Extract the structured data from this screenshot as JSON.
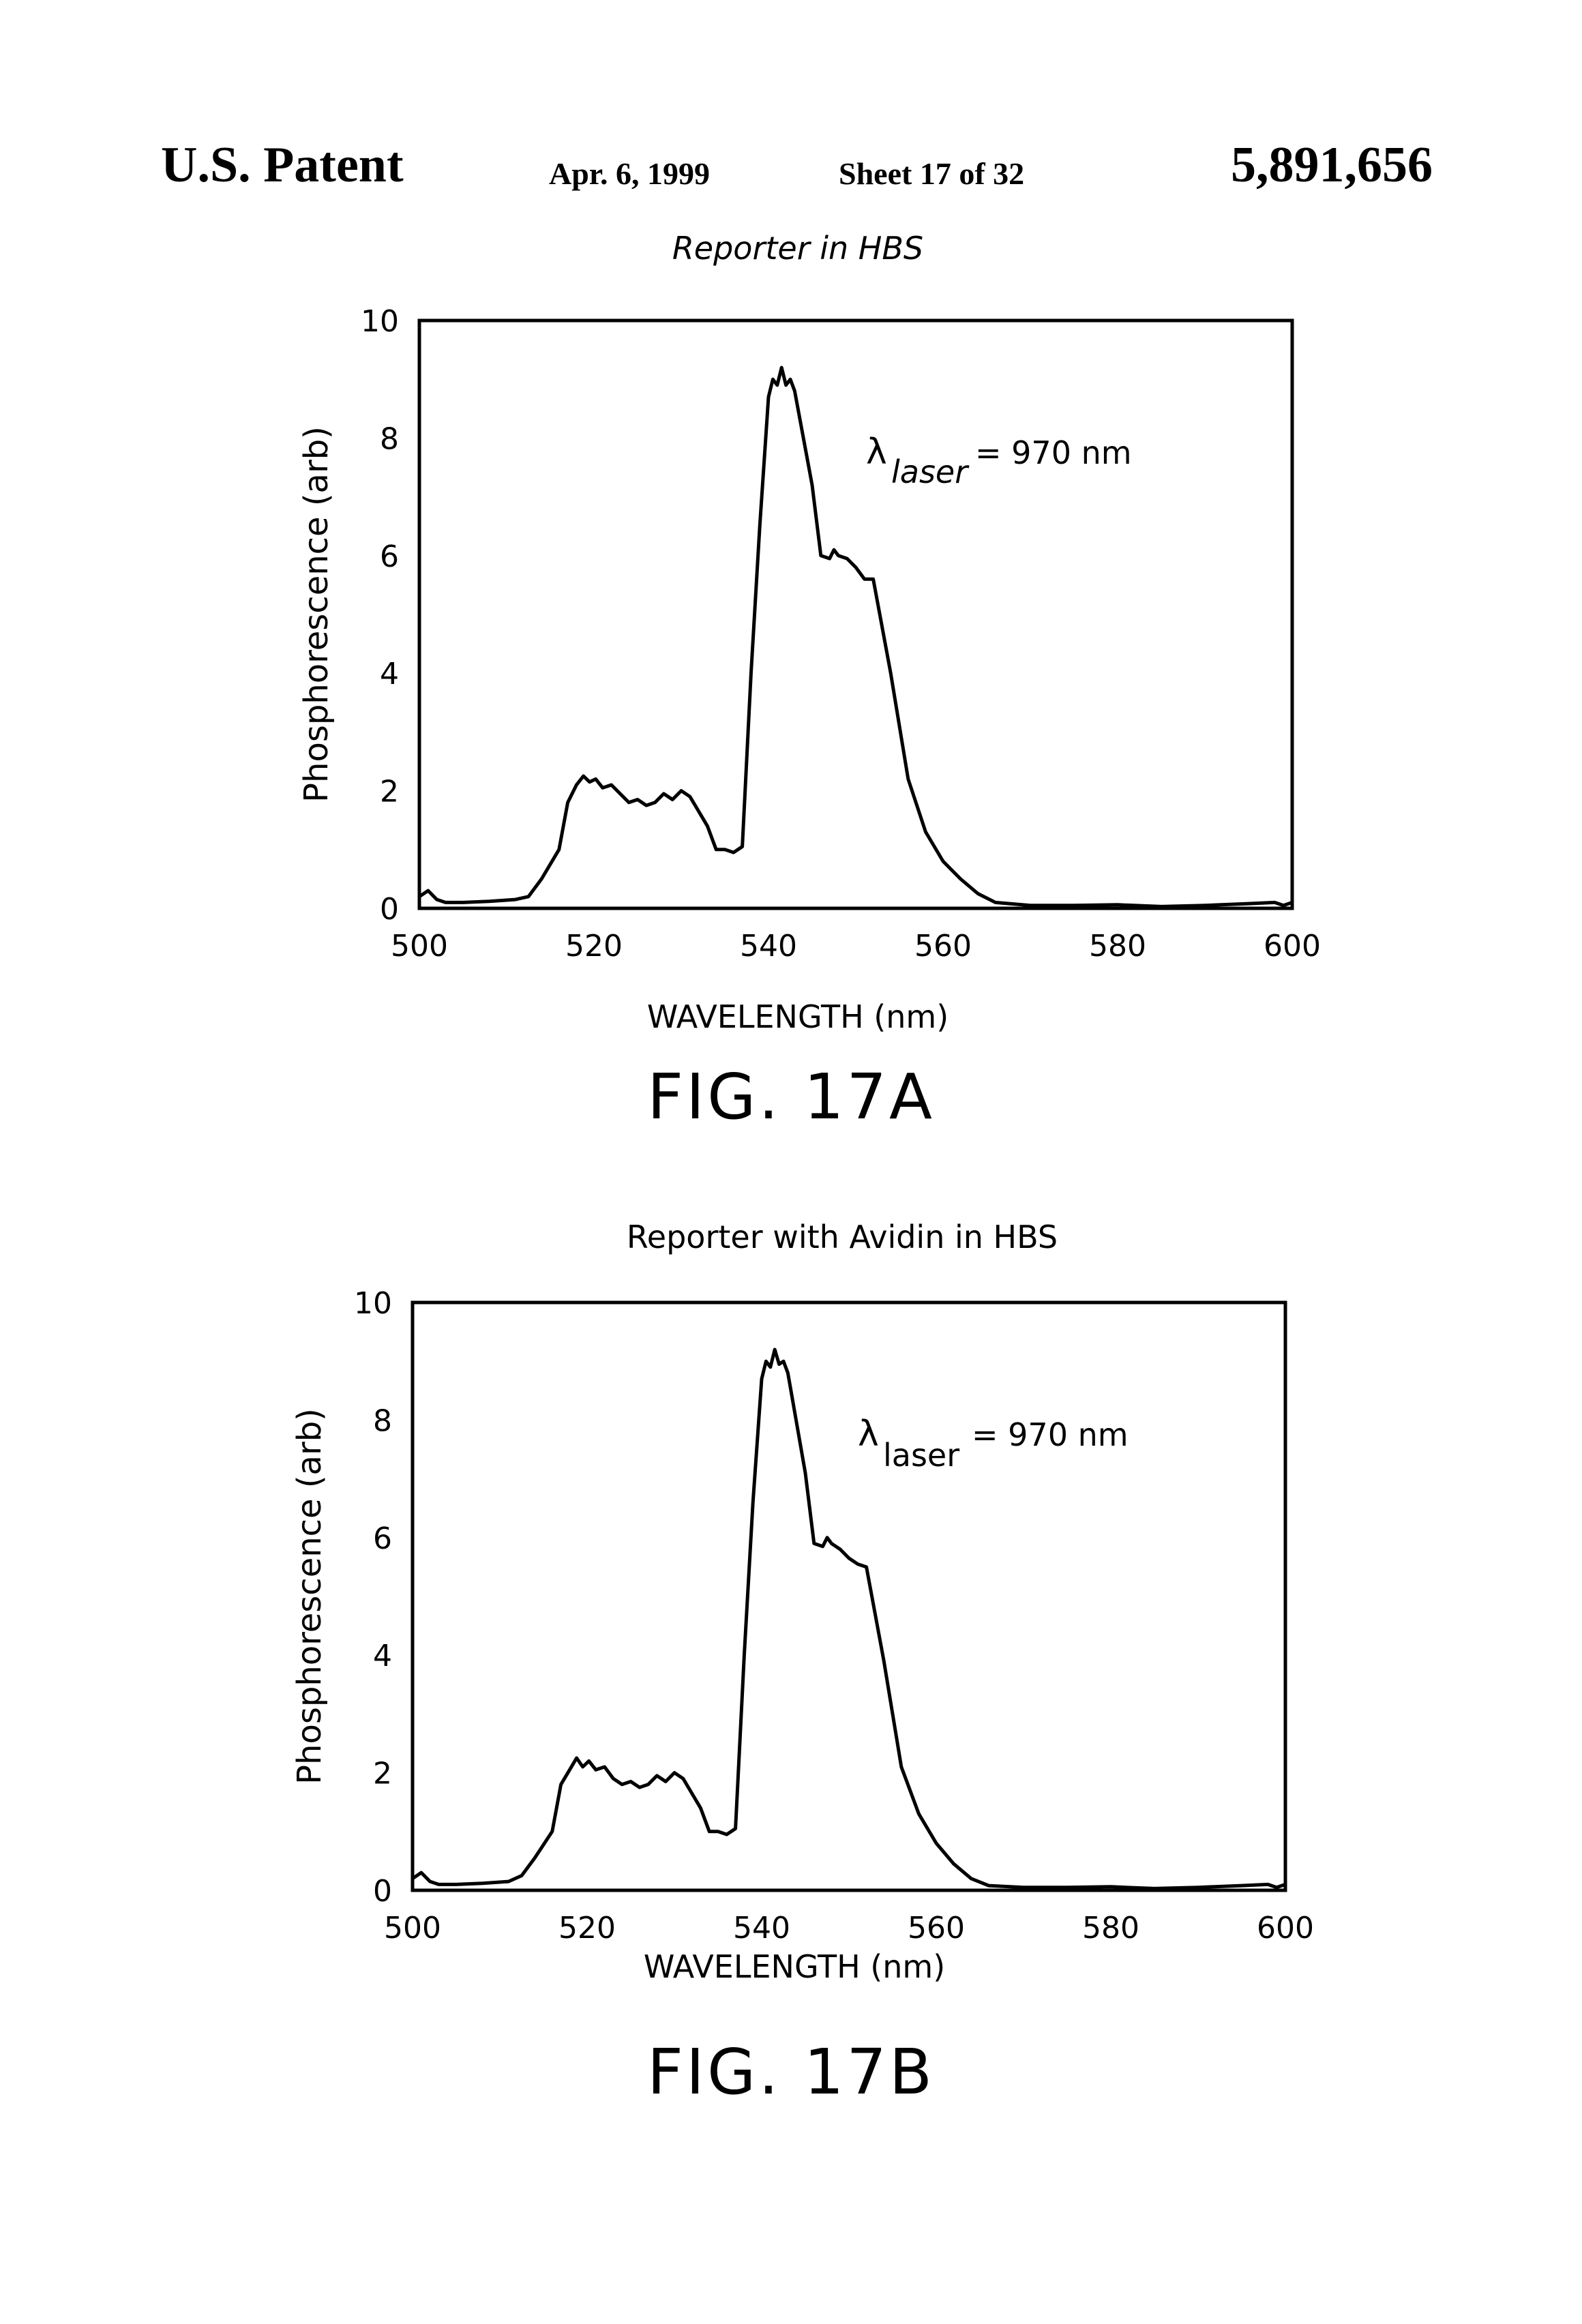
{
  "header": {
    "left": "U.S. Patent",
    "date": "Apr. 6, 1999",
    "sheet": "Sheet 17 of 32",
    "number": "5,891,656"
  },
  "figures": [
    {
      "caption": "FIG. 17A",
      "title": "Reporter in HBS",
      "xlabel": "WAVELENGTH (nm)",
      "ylabel": "Phosphorescence (arb)",
      "annotation_symbol": "λ",
      "annotation_sub": "laser",
      "annotation_value": "= 970 nm"
    },
    {
      "caption": "FIG. 17B",
      "title": "Reporter with Avidin in HBS",
      "xlabel": "WAVELENGTH (nm)",
      "ylabel": "Phosphorescence (arb)",
      "annotation_symbol": "λ",
      "annotation_sub": "laser",
      "annotation_value": "= 970 nm"
    }
  ],
  "chart_data": [
    {
      "type": "line",
      "title": "Reporter in HBS",
      "xlabel": "WAVELENGTH (nm)",
      "ylabel": "Phosphorescence (arb)",
      "xlim": [
        500,
        600
      ],
      "ylim": [
        0,
        10
      ],
      "xticks": [
        500,
        520,
        540,
        560,
        580,
        600
      ],
      "yticks": [
        0,
        2,
        4,
        6,
        8,
        10
      ],
      "grid": false,
      "annotations": [
        "λ laser = 970 nm"
      ],
      "series": [
        {
          "x": [
            500,
            501,
            502,
            503,
            505,
            508,
            511,
            512.5,
            514,
            516,
            517,
            518,
            518.8,
            519.5,
            520.2,
            521,
            522,
            523,
            524,
            525,
            526,
            527,
            528,
            529,
            530,
            531,
            533,
            534,
            535,
            536,
            537,
            538,
            539,
            540,
            540.5,
            541,
            541.5,
            542,
            542.5,
            543,
            545,
            546,
            547,
            547.5,
            548,
            549,
            550,
            551,
            552,
            554,
            556,
            558,
            560,
            562,
            564,
            566,
            570,
            575,
            580,
            585,
            590,
            595,
            598,
            599,
            600
          ],
          "y": [
            0.2,
            0.3,
            0.15,
            0.1,
            0.1,
            0.12,
            0.15,
            0.2,
            0.5,
            1.0,
            1.8,
            2.1,
            2.25,
            2.15,
            2.2,
            2.05,
            2.1,
            1.95,
            1.8,
            1.85,
            1.75,
            1.8,
            1.95,
            1.85,
            2.0,
            1.9,
            1.4,
            1.0,
            1.0,
            0.95,
            1.05,
            4.0,
            6.5,
            8.7,
            9.0,
            8.9,
            9.2,
            8.9,
            9.0,
            8.8,
            7.2,
            6.0,
            5.95,
            6.1,
            6.0,
            5.95,
            5.8,
            5.6,
            5.6,
            4.0,
            2.2,
            1.3,
            0.8,
            0.5,
            0.25,
            0.1,
            0.05,
            0.05,
            0.06,
            0.03,
            0.05,
            0.08,
            0.1,
            0.05,
            0.1
          ]
        }
      ]
    },
    {
      "type": "line",
      "title": "Reporter with Avidin in HBS",
      "xlabel": "WAVELENGTH (nm)",
      "ylabel": "Phosphorescence (arb)",
      "xlim": [
        500,
        600
      ],
      "ylim": [
        0,
        10
      ],
      "xticks": [
        500,
        520,
        540,
        560,
        580,
        600
      ],
      "yticks": [
        0,
        2,
        4,
        6,
        8,
        10
      ],
      "grid": false,
      "annotations": [
        "λ laser = 970 nm"
      ],
      "series": [
        {
          "x": [
            500,
            501,
            502,
            503,
            505,
            508,
            511,
            512.5,
            514,
            516,
            517,
            518,
            518.8,
            519.5,
            520.2,
            521,
            522,
            523,
            524,
            525,
            526,
            527,
            528,
            529,
            530,
            531,
            533,
            534,
            535,
            536,
            537,
            538,
            539,
            540,
            540.5,
            541,
            541.5,
            542,
            542.5,
            543,
            545,
            546,
            547,
            547.5,
            548,
            549,
            550,
            551,
            552,
            554,
            556,
            558,
            560,
            562,
            564,
            566,
            570,
            575,
            580,
            585,
            590,
            595,
            598,
            599,
            600
          ],
          "y": [
            0.2,
            0.3,
            0.15,
            0.1,
            0.1,
            0.12,
            0.15,
            0.25,
            0.55,
            1.0,
            1.8,
            2.05,
            2.25,
            2.1,
            2.2,
            2.05,
            2.1,
            1.9,
            1.8,
            1.85,
            1.75,
            1.8,
            1.95,
            1.85,
            2.0,
            1.9,
            1.4,
            1.0,
            1.0,
            0.95,
            1.05,
            4.0,
            6.6,
            8.7,
            9.0,
            8.9,
            9.2,
            8.95,
            9.0,
            8.8,
            7.1,
            5.9,
            5.85,
            6.0,
            5.9,
            5.8,
            5.65,
            5.55,
            5.5,
            3.9,
            2.1,
            1.3,
            0.8,
            0.45,
            0.2,
            0.08,
            0.05,
            0.05,
            0.06,
            0.03,
            0.05,
            0.08,
            0.1,
            0.05,
            0.1
          ]
        }
      ]
    }
  ]
}
